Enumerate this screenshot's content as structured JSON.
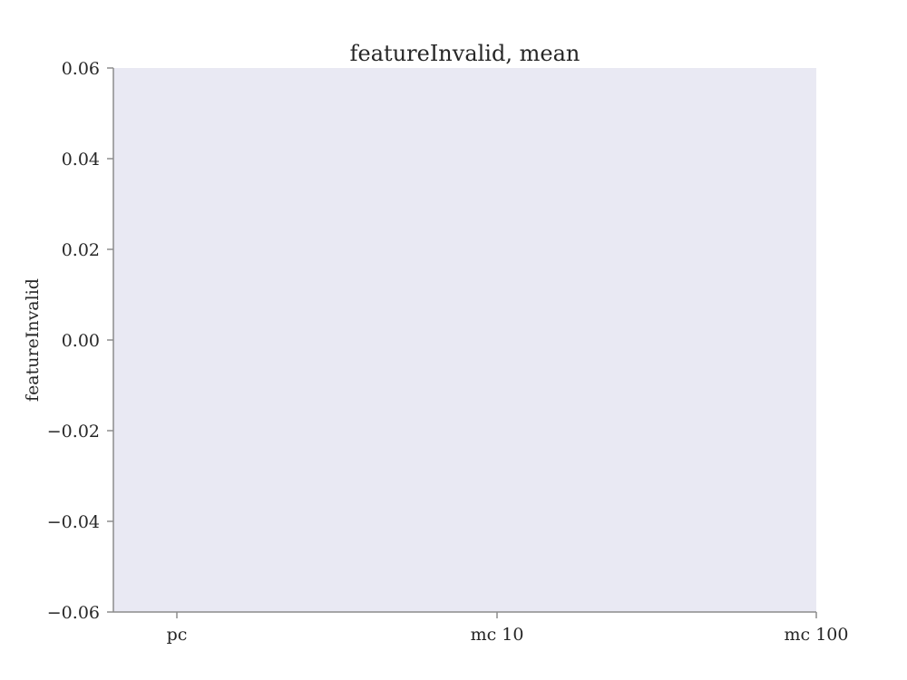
{
  "chart_data": {
    "type": "bar",
    "title": "featureInvalid, mean",
    "xlabel": "",
    "ylabel": "featureInvalid",
    "categories": [
      "pc",
      "mc 10",
      "mc 100"
    ],
    "values": [
      0,
      0,
      0
    ],
    "ylim": [
      -0.06,
      0.06
    ],
    "yticks": [
      -0.06,
      -0.04,
      -0.02,
      0.0,
      0.02,
      0.04,
      0.06
    ],
    "ytick_labels": [
      "−0.06",
      "−0.04",
      "−0.02",
      "0.00",
      "0.02",
      "0.04",
      "0.06"
    ],
    "grid": false,
    "plot_background": "#e9e9f3",
    "axis_color": "#8c8c8c",
    "text_color": "#262626"
  }
}
